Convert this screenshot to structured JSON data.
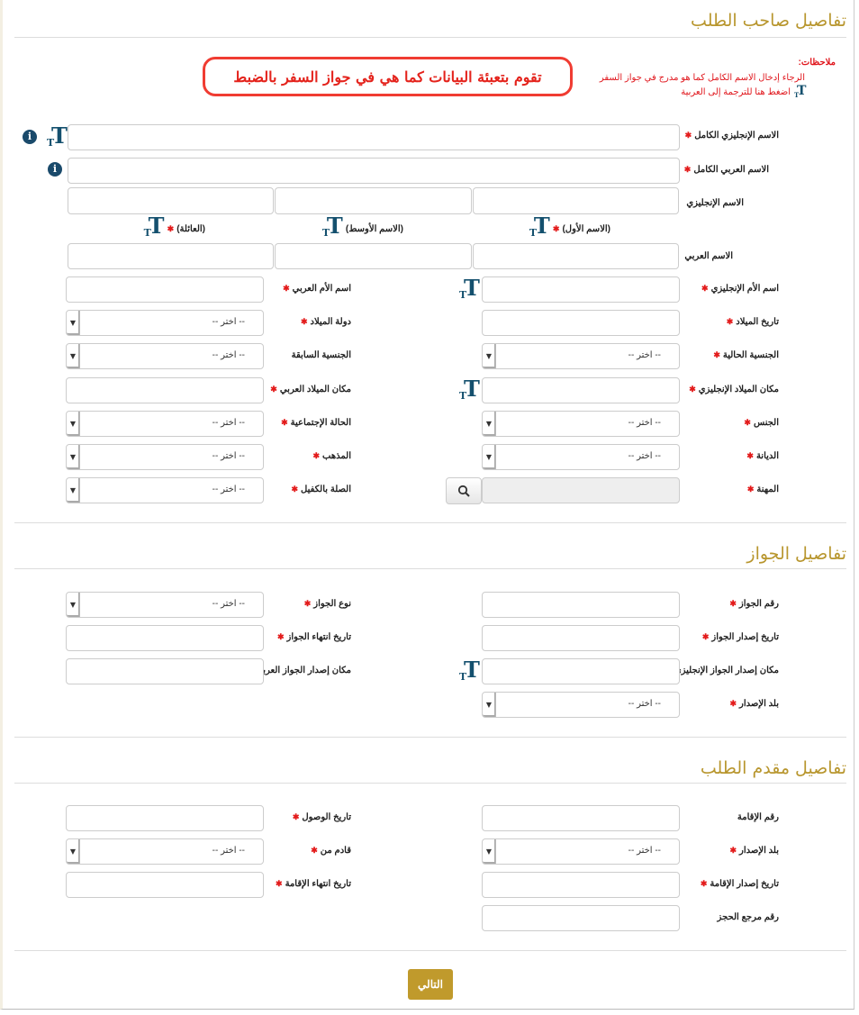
{
  "notes": {
    "heading": "ملاحظات:",
    "line1": "الرجاء إدخال الاسم الكامل كما هو مدرج في جواز السفر",
    "line2": "اضغط هنا للترجمة إلى العربية"
  },
  "banner": "تقوم بتعبئة البيانات كما هي في جواز السفر بالضبط",
  "select_placeholder": "-- اختر --",
  "colors": {
    "accent": "#b8962e",
    "required": "#e31b1b",
    "icon": "#14506e",
    "banner": "#e4231c"
  },
  "applicant": {
    "title": "تفاصيل صاحب الطلب",
    "full_english_name": {
      "label": "الاسم الإنجليزي الكامل",
      "required": true
    },
    "full_arabic_name": {
      "label": "الاسم العربي الكامل",
      "required": true
    },
    "english_name": {
      "label": "الاسم الإنجليزي"
    },
    "arabic_name": {
      "label": "الاسم العربي"
    },
    "name_parts": [
      {
        "label": "(الاسم الأول)",
        "required": true
      },
      {
        "label": "(الاسم الأوسط)",
        "required": false
      },
      {
        "label": "(العائلة)",
        "required": true
      }
    ],
    "rows": [
      {
        "right": {
          "label": "اسم الأم الإنجليزي",
          "required": true,
          "type": "text",
          "translit": true
        },
        "left": {
          "label": "اسم الأم العربي",
          "required": true,
          "type": "text"
        }
      },
      {
        "right": {
          "label": "تاريخ الميلاد",
          "required": true,
          "type": "text"
        },
        "left": {
          "label": "دولة الميلاد",
          "required": true,
          "type": "select"
        }
      },
      {
        "right": {
          "label": "الجنسية الحالية",
          "required": true,
          "type": "select"
        },
        "left": {
          "label": "الجنسية السابقة",
          "required": false,
          "type": "select"
        }
      },
      {
        "right": {
          "label": "مكان الميلاد الإنجليزي",
          "required": true,
          "type": "text",
          "translit": true
        },
        "left": {
          "label": "مكان الميلاد العربي",
          "required": true,
          "type": "text"
        }
      },
      {
        "right": {
          "label": "الجنس",
          "required": true,
          "type": "select"
        },
        "left": {
          "label": "الحالة الإجتماعية",
          "required": true,
          "type": "select"
        }
      },
      {
        "right": {
          "label": "الديانة",
          "required": true,
          "type": "select"
        },
        "left": {
          "label": "المذهب",
          "required": true,
          "type": "select"
        }
      },
      {
        "right": {
          "label": "المهنة",
          "required": true,
          "type": "lookup"
        },
        "left": {
          "label": "الصلة بالكفيل",
          "required": true,
          "type": "select"
        }
      }
    ]
  },
  "passport": {
    "title": "تفاصيل الجواز",
    "rows": [
      {
        "right": {
          "label": "رقم الجواز",
          "required": true,
          "type": "text"
        },
        "left": {
          "label": "نوع الجواز",
          "required": true,
          "type": "select"
        }
      },
      {
        "right": {
          "label": "تاريخ إصدار الجواز",
          "required": true,
          "type": "text"
        },
        "left": {
          "label": "تاريخ انتهاء الجواز",
          "required": true,
          "type": "text"
        }
      },
      {
        "right": {
          "label": "مكان إصدار الجواز الإنجليزي",
          "required": true,
          "type": "text",
          "translit": true
        },
        "left": {
          "label": "مكان إصدار الجواز العربي",
          "required": true,
          "type": "text"
        }
      },
      {
        "right": {
          "label": "بلد الإصدار",
          "required": true,
          "type": "select"
        }
      }
    ]
  },
  "sponsor": {
    "title": "تفاصيل مقدم الطلب",
    "rows": [
      {
        "right": {
          "label": "رقم الإقامة",
          "required": false,
          "type": "text"
        },
        "left": {
          "label": "تاريخ الوصول",
          "required": true,
          "type": "text"
        }
      },
      {
        "right": {
          "label": "بلد الإصدار",
          "required": true,
          "type": "select"
        },
        "left": {
          "label": "قادم من",
          "required": true,
          "type": "select"
        }
      },
      {
        "right": {
          "label": "تاريخ إصدار الإقامة",
          "required": true,
          "type": "text"
        },
        "left": {
          "label": "تاريخ انتهاء الإقامة",
          "required": true,
          "type": "text"
        }
      },
      {
        "right": {
          "label": "رقم مرجع الحجز",
          "required": false,
          "type": "text"
        }
      }
    ]
  },
  "next_button": "التالي"
}
